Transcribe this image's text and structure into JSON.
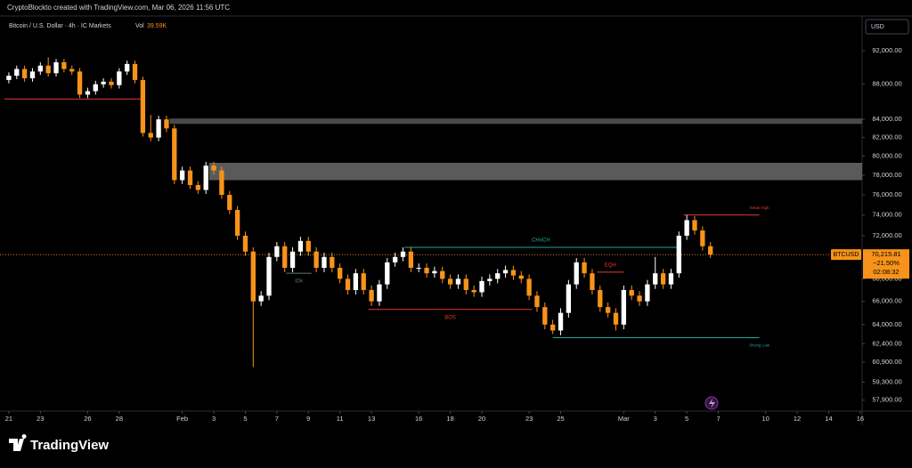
{
  "header": {
    "credit": "CryptoBlockto created with TradingView.com, Mar 06, 2026 11:56 UTC",
    "symbol": "Bitcoin / U.S. Dollar · 4h · IC Markets",
    "vol_label": "Vol",
    "vol_value": "39.59K"
  },
  "chart_data": {
    "type": "candlestick",
    "currency": "USD",
    "log_scale": true,
    "x": [
      0,
      0.5,
      1,
      1.5,
      2,
      2.5,
      3,
      3.5,
      4,
      4.5,
      5,
      5.5,
      6,
      6.5,
      7,
      7.5,
      8,
      8.5,
      9,
      9.5,
      10,
      10.5,
      11,
      11.5,
      12,
      12.5,
      13,
      13.5,
      14,
      14.5,
      15,
      15.5,
      16,
      16.5,
      17,
      17.5,
      18,
      18.5,
      19,
      19.5,
      20,
      20.5,
      21,
      21.5,
      22,
      22.5,
      23,
      23.5,
      24,
      24.5,
      25,
      25.5,
      26,
      26.5,
      27,
      27.5,
      28,
      28.5,
      29,
      29.5,
      30,
      30.5,
      31,
      31.5,
      32,
      32.5,
      33,
      33.5,
      34,
      34.5,
      35,
      35.5,
      36,
      36.5,
      37,
      37.5,
      38,
      38.5,
      39,
      39.5,
      40,
      40.5,
      41,
      41.5,
      42,
      42.5,
      43,
      43.5,
      44,
      44.5
    ],
    "open": [
      88500,
      89000,
      89800,
      88700,
      89500,
      90200,
      89300,
      90600,
      89800,
      89500,
      86800,
      87200,
      88000,
      88300,
      87900,
      89500,
      90400,
      88500,
      82500,
      82000,
      84000,
      83000,
      77500,
      78500,
      77000,
      76500,
      79000,
      78500,
      76000,
      74500,
      72000,
      70500,
      66000,
      66500,
      70000,
      71000,
      69000,
      70500,
      71500,
      70500,
      69000,
      70000,
      69000,
      68000,
      67000,
      68500,
      67000,
      66000,
      67500,
      69500,
      70000,
      70500,
      69000,
      69000,
      68500,
      68700,
      68000,
      67500,
      68000,
      67000,
      66800,
      67800,
      68000,
      68500,
      68800,
      68300,
      68000,
      66500,
      65500,
      64000,
      63500,
      65000,
      67500,
      69500,
      68500,
      67000,
      65500,
      65000,
      64000,
      67000,
      66500,
      66000,
      67500,
      68500,
      67500,
      68500,
      72000,
      73500,
      72500,
      71000
    ],
    "high": [
      89400,
      90200,
      90200,
      89900,
      90600,
      91200,
      91000,
      91000,
      90200,
      89900,
      87600,
      88400,
      88700,
      88700,
      89900,
      90800,
      90800,
      88900,
      84500,
      84400,
      84400,
      83400,
      78900,
      78900,
      77400,
      79400,
      79400,
      78900,
      76400,
      74900,
      72400,
      70900,
      66900,
      70400,
      71400,
      71400,
      70900,
      71900,
      71900,
      70900,
      70400,
      70400,
      69400,
      68400,
      68900,
      68900,
      67400,
      67900,
      69900,
      70400,
      70900,
      70900,
      69400,
      69400,
      69100,
      69100,
      68400,
      68400,
      68400,
      67400,
      68200,
      68400,
      68900,
      69200,
      69200,
      68700,
      68400,
      66900,
      65900,
      64400,
      65400,
      67900,
      69900,
      69900,
      68900,
      67400,
      65900,
      65400,
      67400,
      67400,
      66900,
      67900,
      70000,
      68900,
      68900,
      72400,
      74000,
      73900,
      72900,
      71400
    ],
    "low": [
      88100,
      88600,
      88300,
      88300,
      89100,
      88900,
      88900,
      89400,
      89100,
      86400,
      86400,
      86800,
      87600,
      87500,
      87500,
      89100,
      88100,
      82100,
      81600,
      81600,
      82600,
      77100,
      77100,
      76600,
      76100,
      76100,
      78100,
      75600,
      74100,
      71600,
      70100,
      60500,
      65600,
      66100,
      69600,
      68600,
      68600,
      70100,
      70100,
      68600,
      68600,
      68600,
      67600,
      66600,
      66600,
      66600,
      65600,
      65600,
      67100,
      69100,
      69600,
      68600,
      68600,
      68100,
      68100,
      67600,
      67100,
      67100,
      66600,
      66400,
      66400,
      67400,
      67600,
      68100,
      67900,
      67600,
      66100,
      65100,
      63600,
      63200,
      63100,
      64600,
      67100,
      68100,
      66600,
      65100,
      64600,
      63500,
      63600,
      66100,
      65600,
      65600,
      67100,
      67100,
      67100,
      68100,
      71600,
      72100,
      70600,
      69900
    ],
    "close": [
      89000,
      89800,
      88700,
      89500,
      90200,
      89300,
      90600,
      89800,
      89500,
      86800,
      87200,
      88000,
      88300,
      87900,
      89500,
      90400,
      88500,
      82500,
      82000,
      84000,
      83000,
      77500,
      78500,
      77000,
      76500,
      79000,
      78500,
      76000,
      74500,
      72000,
      70500,
      66000,
      66500,
      70000,
      71000,
      69000,
      70500,
      71500,
      70500,
      69000,
      70000,
      69000,
      68000,
      67000,
      68500,
      67000,
      66000,
      67500,
      69500,
      70000,
      70500,
      69000,
      69000,
      68500,
      68700,
      68000,
      67500,
      68000,
      67000,
      66800,
      67800,
      68000,
      68500,
      68800,
      68300,
      68000,
      66500,
      65500,
      64000,
      63500,
      65000,
      67500,
      69500,
      68500,
      67000,
      65500,
      65000,
      64000,
      67000,
      66500,
      66000,
      67500,
      68500,
      67500,
      68500,
      72000,
      73500,
      72500,
      71000,
      70216
    ],
    "up_color": "#ffffff",
    "down_color": "#f7931a",
    "xlim": [
      -0.56,
      54.12
    ],
    "xticks": [
      {
        "value": 0,
        "label": "21"
      },
      {
        "value": 2,
        "label": "23"
      },
      {
        "value": 5,
        "label": "26"
      },
      {
        "value": 7,
        "label": "28"
      },
      {
        "value": 11,
        "label": "Feb"
      },
      {
        "value": 13,
        "label": "3"
      },
      {
        "value": 15,
        "label": "5"
      },
      {
        "value": 17,
        "label": "7"
      },
      {
        "value": 19,
        "label": "9"
      },
      {
        "value": 21,
        "label": "11"
      },
      {
        "value": 23,
        "label": "13"
      },
      {
        "value": 26,
        "label": "16"
      },
      {
        "value": 28,
        "label": "18"
      },
      {
        "value": 30,
        "label": "20"
      },
      {
        "value": 33,
        "label": "23"
      },
      {
        "value": 35,
        "label": "25"
      },
      {
        "value": 39,
        "label": "Mar"
      },
      {
        "value": 41,
        "label": "3"
      },
      {
        "value": 43,
        "label": "5"
      },
      {
        "value": 45,
        "label": "7"
      },
      {
        "value": 48,
        "label": "10"
      },
      {
        "value": 50,
        "label": "12"
      },
      {
        "value": 52,
        "label": "14"
      },
      {
        "value": 54,
        "label": "16"
      }
    ],
    "ylim": [
      57070,
      96330
    ],
    "yticks": [
      {
        "value": 92000,
        "label": "92,000.00"
      },
      {
        "value": 88000,
        "label": "88,000.00"
      },
      {
        "value": 84000,
        "label": "84,000.00"
      },
      {
        "value": 82000,
        "label": "82,000.00"
      },
      {
        "value": 80000,
        "label": "80,000.00"
      },
      {
        "value": 78000,
        "label": "78,000.00"
      },
      {
        "value": 76000,
        "label": "76,000.00"
      },
      {
        "value": 74000,
        "label": "74,000.00"
      },
      {
        "value": 72000,
        "label": "72,000.00"
      },
      {
        "value": 68000,
        "label": "68,000.00"
      },
      {
        "value": 66000,
        "label": "66,000.00"
      },
      {
        "value": 64000,
        "label": "64,000.00"
      },
      {
        "value": 62400,
        "label": "62,400.00"
      },
      {
        "value": 60900,
        "label": "60,900.00"
      },
      {
        "value": 59300,
        "label": "59,300.00"
      },
      {
        "value": 57900,
        "label": "57,900.00"
      }
    ],
    "last_price": {
      "symbol": "BTCUSD",
      "value": 70215.81,
      "label": "70,215.81",
      "change": {
        "value": -21.5,
        "label": "−21.50%"
      },
      "countdown": "02:08:32",
      "color": "#f7931a"
    },
    "zones": [
      {
        "from_x": 10.2,
        "low": 83500,
        "high": 84100,
        "color": "#4a4a4a"
      },
      {
        "from_x": 12.7,
        "low": 77500,
        "high": 79300,
        "color": "#5a5a5a"
      }
    ],
    "levels": [
      {
        "price": 86300,
        "x": [
          -0.28,
          8.47
        ],
        "color": "#e53935"
      },
      {
        "label": "CHoCH",
        "price": 70900,
        "x": [
          25.1,
          42.4
        ],
        "color": "#26a69a",
        "label_pos": "above"
      },
      {
        "label": "BOS",
        "price": 65300,
        "x": [
          22.8,
          33.2
        ],
        "color": "#e53935",
        "label_pos": "below"
      },
      {
        "label": "IDk",
        "price": 68500,
        "x": [
          17.6,
          19.2
        ],
        "color": "#4f7f70",
        "label_pos": "below"
      },
      {
        "label": "EQH",
        "price": 68600,
        "x": [
          37.3,
          39.0
        ],
        "color": "#e53935",
        "label_pos": "above"
      },
      {
        "label": "Weak High",
        "price": 74000,
        "x": [
          42.8,
          47.6
        ],
        "color": "#e53935",
        "label_pos": "end-above"
      },
      {
        "label": "Strong Low",
        "price": 62900,
        "x": [
          34.5,
          47.6
        ],
        "color": "#26a69a",
        "label_pos": "end-below"
      }
    ]
  },
  "footer": {
    "brand": "TradingView"
  }
}
